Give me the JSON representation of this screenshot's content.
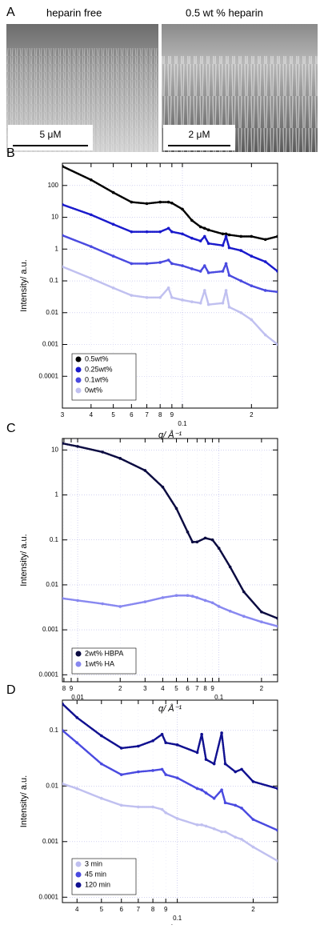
{
  "image_panel": {
    "label": "A",
    "images": [
      {
        "caption": "heparin free",
        "scale_bar": "5 μM"
      },
      {
        "caption": "0.5 wt % heparin",
        "scale_bar": "2 μM"
      }
    ]
  },
  "chart_data": [
    {
      "type": "scatter",
      "label": "B",
      "ylabel": "Intensity/ a.u.",
      "xlabel": "q/ Å⁻¹",
      "log_x": true,
      "log_y": true,
      "grid": true,
      "legend": "lower left",
      "xlim": [
        0.03,
        0.26
      ],
      "ylim": [
        1e-05,
        500
      ],
      "xticks": [
        {
          "value": 0.03,
          "label": "3"
        },
        {
          "value": 0.04,
          "label": "4"
        },
        {
          "value": 0.05,
          "label": "5"
        },
        {
          "value": 0.06,
          "label": "6"
        },
        {
          "value": 0.07,
          "label": "7"
        },
        {
          "value": 0.08,
          "label": "8"
        },
        {
          "value": 0.09,
          "label": "9"
        },
        0.1,
        {
          "value": 0.2,
          "label": "2"
        }
      ],
      "yticks": [
        0.0001,
        0.001,
        0.01,
        0.1,
        1,
        10,
        100
      ],
      "x": [
        0.03,
        0.04,
        0.05,
        0.06,
        0.07,
        0.08,
        0.087,
        0.09,
        0.1,
        0.11,
        0.12,
        0.125,
        0.13,
        0.15,
        0.155,
        0.16,
        0.18,
        0.2,
        0.23,
        0.26
      ],
      "series": [
        {
          "name": "0.5wt%",
          "color": "#000000",
          "values": [
            400,
            150,
            60,
            30,
            27,
            30,
            30,
            28,
            18,
            8,
            5,
            4.5,
            4,
            3,
            3,
            2.8,
            2.5,
            2.5,
            2,
            2.5
          ]
        },
        {
          "name": "0.25wt%",
          "color": "#1a1acc",
          "values": [
            25,
            12,
            6,
            3.5,
            3.5,
            3.5,
            4.5,
            3.5,
            3,
            2.2,
            1.8,
            2.5,
            1.5,
            1.3,
            2.5,
            1.1,
            0.9,
            0.6,
            0.4,
            0.2
          ]
        },
        {
          "name": "0.1wt%",
          "color": "#4a4ae0",
          "values": [
            2.7,
            1.2,
            0.6,
            0.35,
            0.35,
            0.38,
            0.45,
            0.35,
            0.3,
            0.24,
            0.2,
            0.3,
            0.18,
            0.2,
            0.35,
            0.15,
            0.1,
            0.07,
            0.05,
            0.045
          ]
        },
        {
          "name": "0wt%",
          "color": "#c0c0f0",
          "values": [
            0.28,
            0.12,
            0.06,
            0.035,
            0.03,
            0.03,
            0.06,
            0.03,
            0.025,
            0.022,
            0.02,
            0.05,
            0.018,
            0.02,
            0.05,
            0.015,
            0.01,
            0.006,
            0.002,
            0.001
          ]
        }
      ]
    },
    {
      "type": "scatter",
      "label": "C",
      "ylabel": "Intensity/ a.u.",
      "xlabel": "q/ Å⁻¹",
      "log_x": true,
      "log_y": true,
      "grid": true,
      "legend": "lower left",
      "xlim": [
        0.0078,
        0.26
      ],
      "ylim": [
        7e-05,
        18
      ],
      "xticks": [
        {
          "value": 0.008,
          "label": "8"
        },
        {
          "value": 0.009,
          "label": "9"
        },
        0.01,
        {
          "value": 0.02,
          "label": "2"
        },
        {
          "value": 0.03,
          "label": "3"
        },
        {
          "value": 0.04,
          "label": "4"
        },
        {
          "value": 0.05,
          "label": "5"
        },
        {
          "value": 0.06,
          "label": "6"
        },
        {
          "value": 0.07,
          "label": "7"
        },
        {
          "value": 0.08,
          "label": "8"
        },
        {
          "value": 0.09,
          "label": "9"
        },
        0.1,
        {
          "value": 0.2,
          "label": "2"
        }
      ],
      "yticks": [
        0.0001,
        0.001,
        0.01,
        0.1,
        1,
        10
      ],
      "x": [
        0.0078,
        0.01,
        0.015,
        0.02,
        0.03,
        0.04,
        0.05,
        0.06,
        0.065,
        0.07,
        0.08,
        0.09,
        0.1,
        0.12,
        0.15,
        0.2,
        0.26
      ],
      "series": [
        {
          "name": "2wt% HBPA",
          "color": "#0a0a40",
          "values": [
            14,
            12,
            9,
            6.5,
            3.5,
            1.5,
            0.5,
            0.15,
            0.09,
            0.09,
            0.11,
            0.1,
            0.065,
            0.025,
            0.007,
            0.0025,
            0.0018
          ]
        },
        {
          "name": "1wt% HA",
          "color": "#8888f0",
          "values": [
            0.005,
            0.0045,
            0.0038,
            0.0033,
            0.0042,
            0.0052,
            0.0058,
            0.0058,
            0.0056,
            0.0052,
            0.0045,
            0.004,
            0.0033,
            0.0026,
            0.002,
            0.0015,
            0.0012
          ]
        }
      ]
    },
    {
      "type": "scatter",
      "label": "D",
      "ylabel": "Intensity/ a.u.",
      "xlabel": "q/ Å⁻¹",
      "log_x": true,
      "log_y": true,
      "grid": true,
      "legend": "lower left",
      "xlim": [
        0.035,
        0.25
      ],
      "ylim": [
        8e-05,
        0.35
      ],
      "xticks": [
        {
          "value": 0.04,
          "label": "4"
        },
        {
          "value": 0.05,
          "label": "5"
        },
        {
          "value": 0.06,
          "label": "6"
        },
        {
          "value": 0.07,
          "label": "7"
        },
        {
          "value": 0.08,
          "label": "8"
        },
        {
          "value": 0.09,
          "label": "9"
        },
        0.1,
        {
          "value": 0.2,
          "label": "2"
        }
      ],
      "yticks": [
        0.0001,
        0.001,
        0.01,
        0.1
      ],
      "x": [
        0.035,
        0.04,
        0.05,
        0.06,
        0.07,
        0.08,
        0.087,
        0.09,
        0.1,
        0.12,
        0.125,
        0.13,
        0.14,
        0.15,
        0.155,
        0.17,
        0.18,
        0.2,
        0.25
      ],
      "series": [
        {
          "name": "3 min",
          "color": "#c0c0f0",
          "values": [
            0.011,
            0.009,
            0.006,
            0.0045,
            0.0042,
            0.0042,
            0.0038,
            0.0033,
            0.0026,
            0.002,
            0.002,
            0.0019,
            0.0017,
            0.0015,
            0.0015,
            0.0012,
            0.0011,
            0.0008,
            0.00045
          ]
        },
        {
          "name": "45 min",
          "color": "#4a4ae0",
          "values": [
            0.1,
            0.06,
            0.025,
            0.016,
            0.018,
            0.019,
            0.02,
            0.016,
            0.014,
            0.009,
            0.0085,
            0.0075,
            0.006,
            0.0085,
            0.005,
            0.0045,
            0.004,
            0.0025,
            0.0016
          ]
        },
        {
          "name": "120 min",
          "color": "#101090",
          "values": [
            0.3,
            0.17,
            0.08,
            0.048,
            0.052,
            0.065,
            0.085,
            0.06,
            0.055,
            0.04,
            0.085,
            0.03,
            0.025,
            0.09,
            0.025,
            0.018,
            0.02,
            0.012,
            0.009
          ]
        }
      ]
    }
  ]
}
